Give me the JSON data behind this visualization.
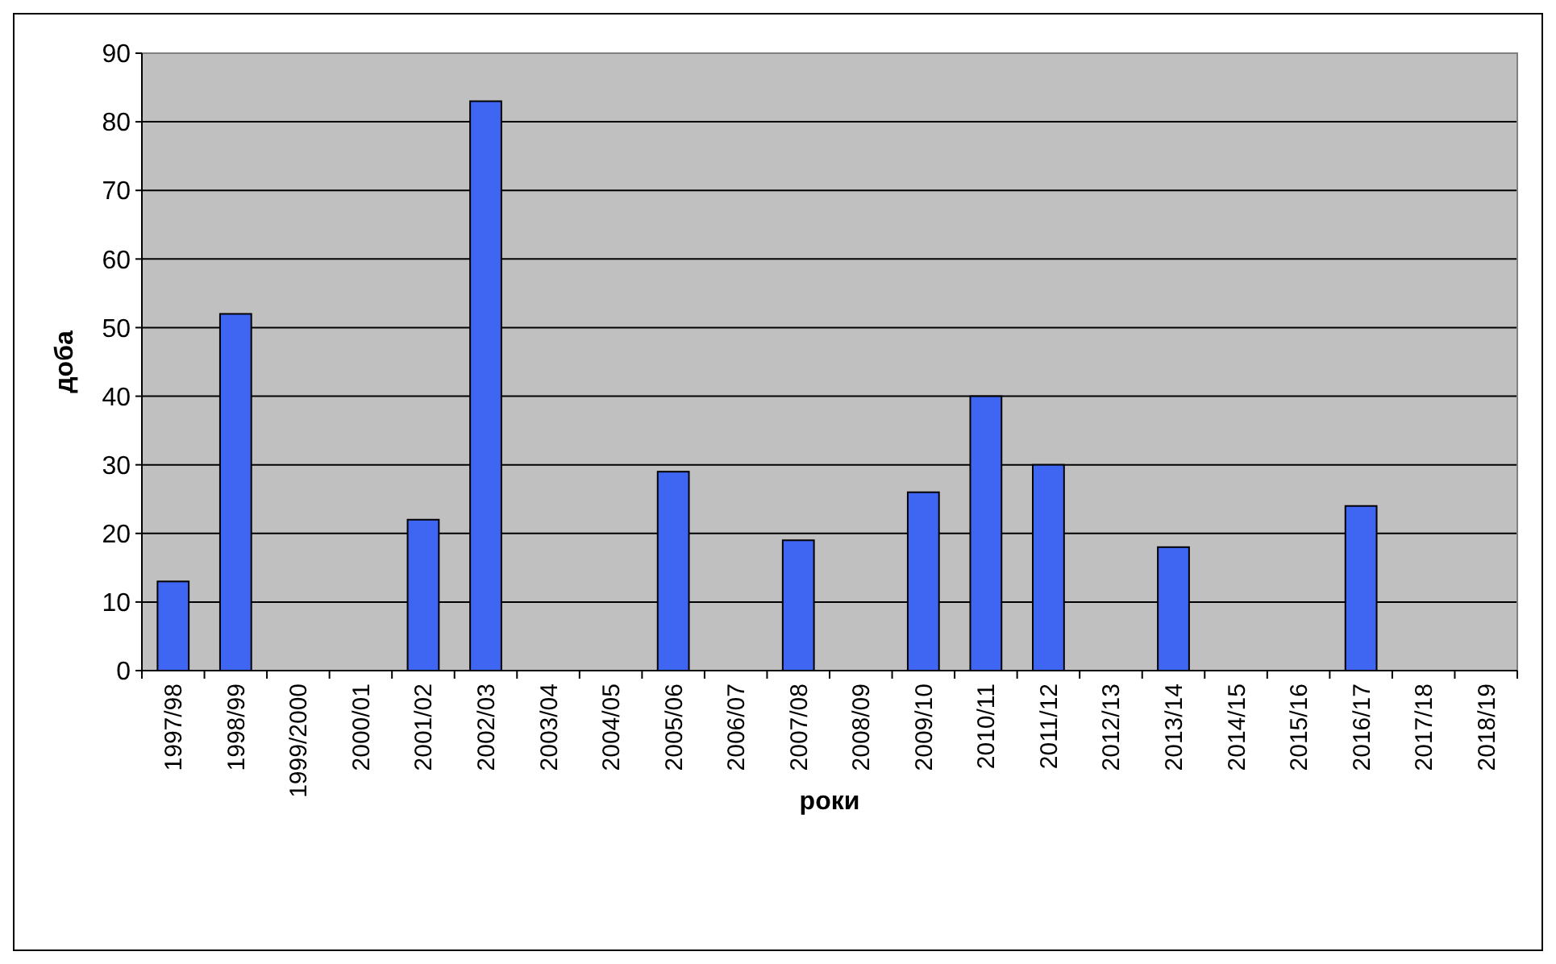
{
  "chart_data": {
    "type": "bar",
    "xlabel": "роки",
    "ylabel": "доба",
    "categories": [
      "1997/98",
      "1998/99",
      "1999/2000",
      "2000/01",
      "2001/02",
      "2002/03",
      "2003/04",
      "2004/05",
      "2005/06",
      "2006/07",
      "2007/08",
      "2008/09",
      "2009/10",
      "2010/11",
      "2011/12",
      "2012/13",
      "2013/14",
      "2014/15",
      "2015/16",
      "2016/17",
      "2017/18",
      "2018/19"
    ],
    "values": [
      13,
      52,
      0,
      0,
      22,
      83,
      0,
      0,
      29,
      0,
      19,
      0,
      26,
      40,
      30,
      0,
      18,
      0,
      0,
      24,
      0,
      0
    ],
    "color": "#3e66f2",
    "ylim": [
      0,
      90
    ],
    "yticks": [
      0,
      10,
      20,
      30,
      40,
      50,
      60,
      70,
      80,
      90
    ],
    "grid": "y"
  }
}
